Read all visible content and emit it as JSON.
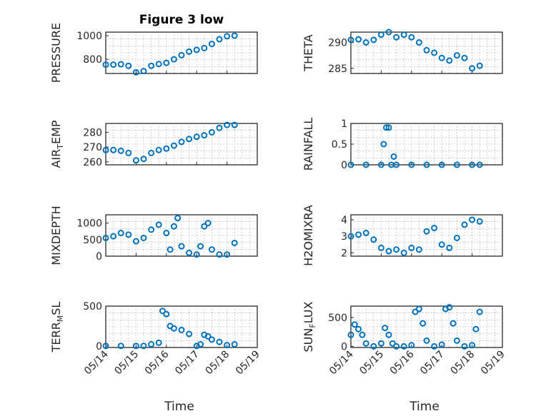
{
  "figure": {
    "title": "Figure 3 low"
  },
  "colors": {
    "marker": "#0072BD",
    "axis": "#262626"
  },
  "chart_data": [
    {
      "type": "scatter",
      "title": "Figure 3 low",
      "ylabel": "PRESSURE",
      "xlim": [
        "05/14",
        "05/19"
      ],
      "ylim": [
        680,
        1030
      ],
      "yticks": [
        800,
        1000
      ],
      "xticks": [
        "05/14",
        "05/15",
        "05/16",
        "05/17",
        "05/18",
        "05/19"
      ],
      "grid": true,
      "x": [
        "05/14 00:00",
        "05/14 06:00",
        "05/14 12:00",
        "05/14 18:00",
        "05/15 00:00",
        "05/15 06:00",
        "05/15 12:00",
        "05/15 18:00",
        "05/16 00:00",
        "05/16 06:00",
        "05/16 12:00",
        "05/16 18:00",
        "05/17 00:00",
        "05/17 06:00",
        "05/17 12:00",
        "05/17 18:00",
        "05/18 00:00",
        "05/18 06:00"
      ],
      "y": [
        755,
        755,
        758,
        745,
        690,
        700,
        745,
        760,
        770,
        800,
        835,
        865,
        880,
        895,
        930,
        970,
        995,
        1000
      ]
    },
    {
      "type": "scatter",
      "ylabel": "THETA",
      "xlim": [
        "05/14",
        "05/19"
      ],
      "ylim": [
        284,
        292
      ],
      "yticks": [
        285,
        290
      ],
      "xticks": [
        "05/14",
        "05/15",
        "05/16",
        "05/17",
        "05/18",
        "05/19"
      ],
      "grid": true,
      "x": [
        "05/14 00:00",
        "05/14 06:00",
        "05/14 12:00",
        "05/14 18:00",
        "05/15 00:00",
        "05/15 06:00",
        "05/15 12:00",
        "05/15 18:00",
        "05/16 00:00",
        "05/16 06:00",
        "05/16 12:00",
        "05/16 18:00",
        "05/17 00:00",
        "05/17 06:00",
        "05/17 12:00",
        "05/17 18:00",
        "05/18 00:00",
        "05/18 06:00"
      ],
      "y": [
        290.5,
        290.6,
        290.0,
        290.5,
        291.5,
        292.0,
        291.0,
        291.5,
        291.0,
        290.0,
        288.5,
        288.0,
        287.0,
        286.5,
        287.5,
        287.0,
        285.0,
        285.5
      ]
    },
    {
      "type": "scatter",
      "ylabel": "AIR_TEMP",
      "xlim": [
        "05/14",
        "05/19"
      ],
      "ylim": [
        258,
        286
      ],
      "yticks": [
        260,
        270,
        280
      ],
      "xticks": [
        "05/14",
        "05/15",
        "05/16",
        "05/17",
        "05/18",
        "05/19"
      ],
      "grid": true,
      "x": [
        "05/14 00:00",
        "05/14 06:00",
        "05/14 12:00",
        "05/14 18:00",
        "05/15 00:00",
        "05/15 06:00",
        "05/15 12:00",
        "05/15 18:00",
        "05/16 00:00",
        "05/16 06:00",
        "05/16 12:00",
        "05/16 18:00",
        "05/17 00:00",
        "05/17 06:00",
        "05/17 12:00",
        "05/17 18:00",
        "05/18 00:00",
        "05/18 06:00"
      ],
      "y": [
        268,
        268,
        267.5,
        266,
        261,
        262,
        266,
        268,
        269,
        271,
        273.5,
        275.5,
        277,
        278,
        280,
        283,
        285,
        285
      ]
    },
    {
      "type": "scatter",
      "ylabel": "RAINFALL",
      "xlim": [
        "05/14",
        "05/19"
      ],
      "ylim": [
        0,
        1
      ],
      "yticks": [
        0,
        0.5,
        1
      ],
      "xticks": [
        "05/14",
        "05/15",
        "05/16",
        "05/17",
        "05/18",
        "05/19"
      ],
      "grid": true,
      "x": [
        "05/14 00:00",
        "05/14 12:00",
        "05/15 00:00",
        "05/15 02:00",
        "05/15 04:00",
        "05/15 06:00",
        "05/15 08:00",
        "05/15 10:00",
        "05/15 12:00",
        "05/16 00:00",
        "05/16 12:00",
        "05/17 00:00",
        "05/17 12:00",
        "05/18 00:00",
        "05/18 06:00"
      ],
      "y": [
        0,
        0,
        0,
        0.5,
        0.9,
        0.9,
        0,
        0.2,
        0,
        0,
        0,
        0,
        0,
        0,
        0
      ]
    },
    {
      "type": "scatter",
      "ylabel": "MIXDEPTH",
      "xlim": [
        "05/14",
        "05/19"
      ],
      "ylim": [
        0,
        1250
      ],
      "yticks": [
        0,
        500,
        1000
      ],
      "xticks": [
        "05/14",
        "05/15",
        "05/16",
        "05/17",
        "05/18",
        "05/19"
      ],
      "grid": true,
      "x": [
        "05/14 00:00",
        "05/14 06:00",
        "05/14 12:00",
        "05/14 18:00",
        "05/15 00:00",
        "05/15 06:00",
        "05/15 12:00",
        "05/15 18:00",
        "05/16 00:00",
        "05/16 03:00",
        "05/16 06:00",
        "05/16 09:00",
        "05/16 12:00",
        "05/16 18:00",
        "05/17 00:00",
        "05/17 03:00",
        "05/17 06:00",
        "05/17 09:00",
        "05/17 12:00",
        "05/17 18:00",
        "05/18 00:00",
        "05/18 06:00"
      ],
      "y": [
        550,
        600,
        700,
        650,
        450,
        550,
        800,
        950,
        700,
        200,
        900,
        1150,
        300,
        100,
        50,
        300,
        900,
        1000,
        200,
        50,
        50,
        400
      ]
    },
    {
      "type": "scatter",
      "ylabel": "H2OMIXRA",
      "xlim": [
        "05/14",
        "05/19"
      ],
      "ylim": [
        1.8,
        4.3
      ],
      "yticks": [
        2,
        3,
        4
      ],
      "xticks": [
        "05/14",
        "05/15",
        "05/16",
        "05/17",
        "05/18",
        "05/19"
      ],
      "grid": true,
      "x": [
        "05/14 00:00",
        "05/14 06:00",
        "05/14 12:00",
        "05/14 18:00",
        "05/15 00:00",
        "05/15 06:00",
        "05/15 12:00",
        "05/15 18:00",
        "05/16 00:00",
        "05/16 06:00",
        "05/16 12:00",
        "05/16 18:00",
        "05/17 00:00",
        "05/17 06:00",
        "05/17 12:00",
        "05/17 18:00",
        "05/18 00:00",
        "05/18 06:00"
      ],
      "y": [
        3.0,
        3.1,
        3.2,
        2.8,
        2.3,
        2.1,
        2.2,
        2.0,
        2.3,
        2.2,
        3.3,
        3.5,
        2.5,
        2.3,
        2.9,
        3.7,
        4.0,
        3.9
      ]
    },
    {
      "type": "scatter",
      "ylabel": "TERR_MSL",
      "xlim": [
        "05/14",
        "05/19"
      ],
      "ylim": [
        -20,
        500
      ],
      "yticks": [
        0,
        500
      ],
      "xticks": [
        "05/14",
        "05/15",
        "05/16",
        "05/17",
        "05/18",
        "05/19"
      ],
      "grid": true,
      "x": [
        "05/14 00:00",
        "05/14 12:00",
        "05/15 00:00",
        "05/15 06:00",
        "05/15 12:00",
        "05/15 18:00",
        "05/15 21:00",
        "05/16 00:00",
        "05/16 03:00",
        "05/16 06:00",
        "05/16 12:00",
        "05/16 18:00",
        "05/17 00:00",
        "05/17 03:00",
        "05/17 06:00",
        "05/17 09:00",
        "05/17 12:00",
        "05/17 18:00",
        "05/18 00:00",
        "05/18 06:00"
      ],
      "y": [
        0,
        0,
        0,
        0,
        20,
        40,
        440,
        400,
        250,
        220,
        200,
        150,
        0,
        20,
        140,
        120,
        80,
        50,
        10,
        20
      ]
    },
    {
      "type": "scatter",
      "ylabel": "SUN_FLUX",
      "xlim": [
        "05/14",
        "05/19"
      ],
      "ylim": [
        -20,
        700
      ],
      "yticks": [
        0,
        500
      ],
      "xticks": [
        "05/14",
        "05/15",
        "05/16",
        "05/17",
        "05/18",
        "05/19"
      ],
      "grid": true,
      "x": [
        "05/14 00:00",
        "05/14 03:00",
        "05/14 06:00",
        "05/14 09:00",
        "05/14 12:00",
        "05/14 18:00",
        "05/15 00:00",
        "05/15 03:00",
        "05/15 06:00",
        "05/15 09:00",
        "05/15 12:00",
        "05/15 18:00",
        "05/16 00:00",
        "05/16 03:00",
        "05/16 06:00",
        "05/16 09:00",
        "05/16 12:00",
        "05/16 18:00",
        "05/17 00:00",
        "05/17 03:00",
        "05/17 06:00",
        "05/17 09:00",
        "05/17 12:00",
        "05/17 18:00",
        "05/18 00:00",
        "05/18 03:00",
        "05/18 06:00"
      ],
      "y": [
        200,
        380,
        300,
        200,
        50,
        0,
        50,
        320,
        200,
        50,
        0,
        0,
        20,
        600,
        650,
        400,
        100,
        0,
        30,
        650,
        680,
        400,
        100,
        0,
        20,
        300,
        600
      ]
    }
  ],
  "axes": {
    "xlabel_left": "Time",
    "xlabel_right": "Time"
  }
}
